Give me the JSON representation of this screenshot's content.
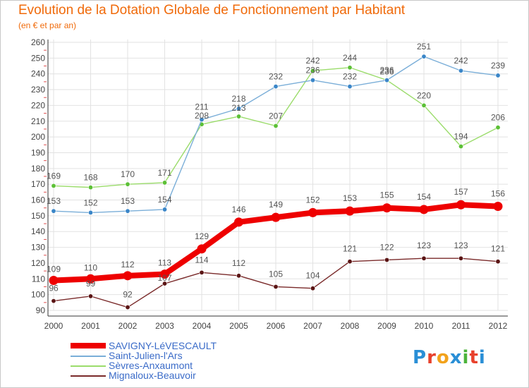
{
  "header": {
    "title": "Evolution de la Dotation Globale de Fonctionnement par Habitant",
    "subtitle": "(en € et par an)"
  },
  "logo": {
    "text": "Proxiti",
    "letter_colors": [
      "#2a8fd6",
      "#e8412c",
      "#f2a21b",
      "#2a8fd6",
      "#4bb33a",
      "#e8412c",
      "#2a8fd6"
    ]
  },
  "chart_data": {
    "type": "line",
    "title": "Evolution de la Dotation Globale de Fonctionnement par Habitant",
    "subtitle": "(en € et par an)",
    "x": [
      "2000",
      "2001",
      "2002",
      "2003",
      "2004",
      "2005",
      "2006",
      "2007",
      "2008",
      "2009",
      "2010",
      "2011",
      "2012"
    ],
    "ylim": [
      90,
      260
    ],
    "yticks": [
      "90",
      "100",
      "110",
      "120",
      "130",
      "140",
      "150",
      "160",
      "170",
      "180",
      "190",
      "200",
      "210",
      "220",
      "230",
      "240",
      "250",
      "260"
    ],
    "grid": true,
    "legend_position": "bottom-left",
    "series": [
      {
        "name": "Mignaloux-Beauvoir",
        "color": "#7a2a2a",
        "point_color": "#5a1414",
        "values": [
          96,
          99,
          92,
          107,
          114,
          112,
          105,
          104,
          121,
          122,
          123,
          123,
          121
        ],
        "labels": [
          "96",
          "99",
          "92",
          "107",
          "114",
          "112",
          "105",
          "104",
          "121",
          "122",
          "123",
          "123",
          "121"
        ]
      },
      {
        "name": "Sèvres-Anxaumont",
        "color": "#9bdc6b",
        "point_color": "#5cc036",
        "values": [
          169,
          168,
          170,
          171,
          208,
          213,
          207,
          242,
          244,
          236,
          220,
          194,
          206
        ],
        "labels": [
          "169",
          "168",
          "170",
          "171",
          "208",
          "213",
          "207",
          "242",
          "244",
          "236",
          "220",
          "194",
          "206"
        ]
      },
      {
        "name": "Saint-Julien-l'Ars",
        "color": "#7aaed8",
        "point_color": "#3a86c8",
        "values": [
          153,
          152,
          153,
          154,
          211,
          218,
          232,
          236,
          232,
          236,
          251,
          242,
          239
        ],
        "labels": [
          "153",
          "152",
          "153",
          "154",
          "211",
          "218",
          "232",
          "236",
          "232",
          "236",
          "251",
          "242",
          "239"
        ]
      },
      {
        "name": "SAVIGNY-LéVESCAULT",
        "color": "#ee0000",
        "point_color": "#ee0000",
        "values": [
          109,
          110,
          112,
          113,
          129,
          146,
          149,
          152,
          153,
          155,
          154,
          157,
          156
        ],
        "labels": [
          "109",
          "110",
          "112",
          "113",
          "129",
          "146",
          "149",
          "152",
          "153",
          "155",
          "154",
          "157",
          "156"
        ]
      }
    ],
    "legend": [
      {
        "name": "SAVIGNY-LéVESCAULT",
        "color": "#ee0000",
        "width": "thick"
      },
      {
        "name": "Saint-Julien-l'Ars",
        "color": "#7aaed8",
        "width": "thin"
      },
      {
        "name": "Sèvres-Anxaumont",
        "color": "#9bdc6b",
        "width": "thin"
      },
      {
        "name": "Mignaloux-Beauvoir",
        "color": "#7a2a2a",
        "width": "thin"
      }
    ]
  }
}
